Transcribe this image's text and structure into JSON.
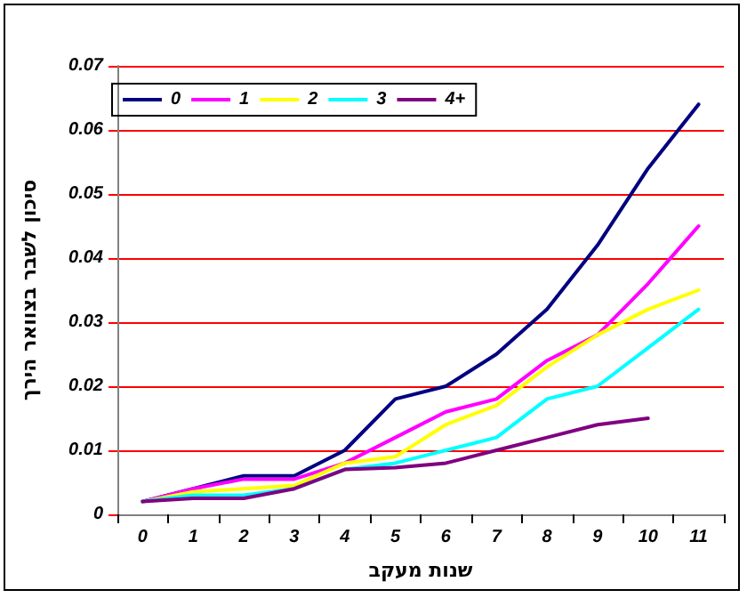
{
  "chart_data": {
    "type": "line",
    "xlabel": "שנות מעקב",
    "ylabel": "סיכון לשבר בצוואר הירך",
    "categories": [
      "0",
      "1",
      "2",
      "3",
      "4",
      "5",
      "6",
      "7",
      "8",
      "9",
      "10",
      "11"
    ],
    "series": [
      {
        "name": "0",
        "color": "#000080",
        "values": [
          0.002,
          0.004,
          0.006,
          0.006,
          0.01,
          0.018,
          0.02,
          0.025,
          0.032,
          0.042,
          0.054,
          0.064
        ]
      },
      {
        "name": "1",
        "color": "#ff00ff",
        "values": [
          0.002,
          0.004,
          0.0055,
          0.0055,
          0.008,
          0.012,
          0.016,
          0.018,
          0.024,
          0.028,
          0.036,
          0.045
        ]
      },
      {
        "name": "2",
        "color": "#ffff00",
        "values": [
          0.002,
          0.0035,
          0.004,
          0.0045,
          0.008,
          0.009,
          0.014,
          0.017,
          0.023,
          0.028,
          0.032,
          0.035
        ]
      },
      {
        "name": "3",
        "color": "#00ffff",
        "values": [
          0.002,
          0.003,
          0.003,
          0.004,
          0.007,
          0.008,
          0.01,
          0.012,
          0.018,
          0.02,
          0.026,
          0.032
        ]
      },
      {
        "name": "4+",
        "color": "#800080",
        "values": [
          0.002,
          0.0025,
          0.0025,
          0.004,
          0.007,
          0.0073,
          0.008,
          0.01,
          0.012,
          0.014,
          0.015,
          null
        ]
      }
    ],
    "ylim": [
      0,
      0.07
    ],
    "yticks": [
      0,
      0.01,
      0.02,
      0.03,
      0.04,
      0.05,
      0.06,
      0.07
    ],
    "grid": "y",
    "legend": "top left",
    "marker": "none",
    "line_style": "solid"
  }
}
